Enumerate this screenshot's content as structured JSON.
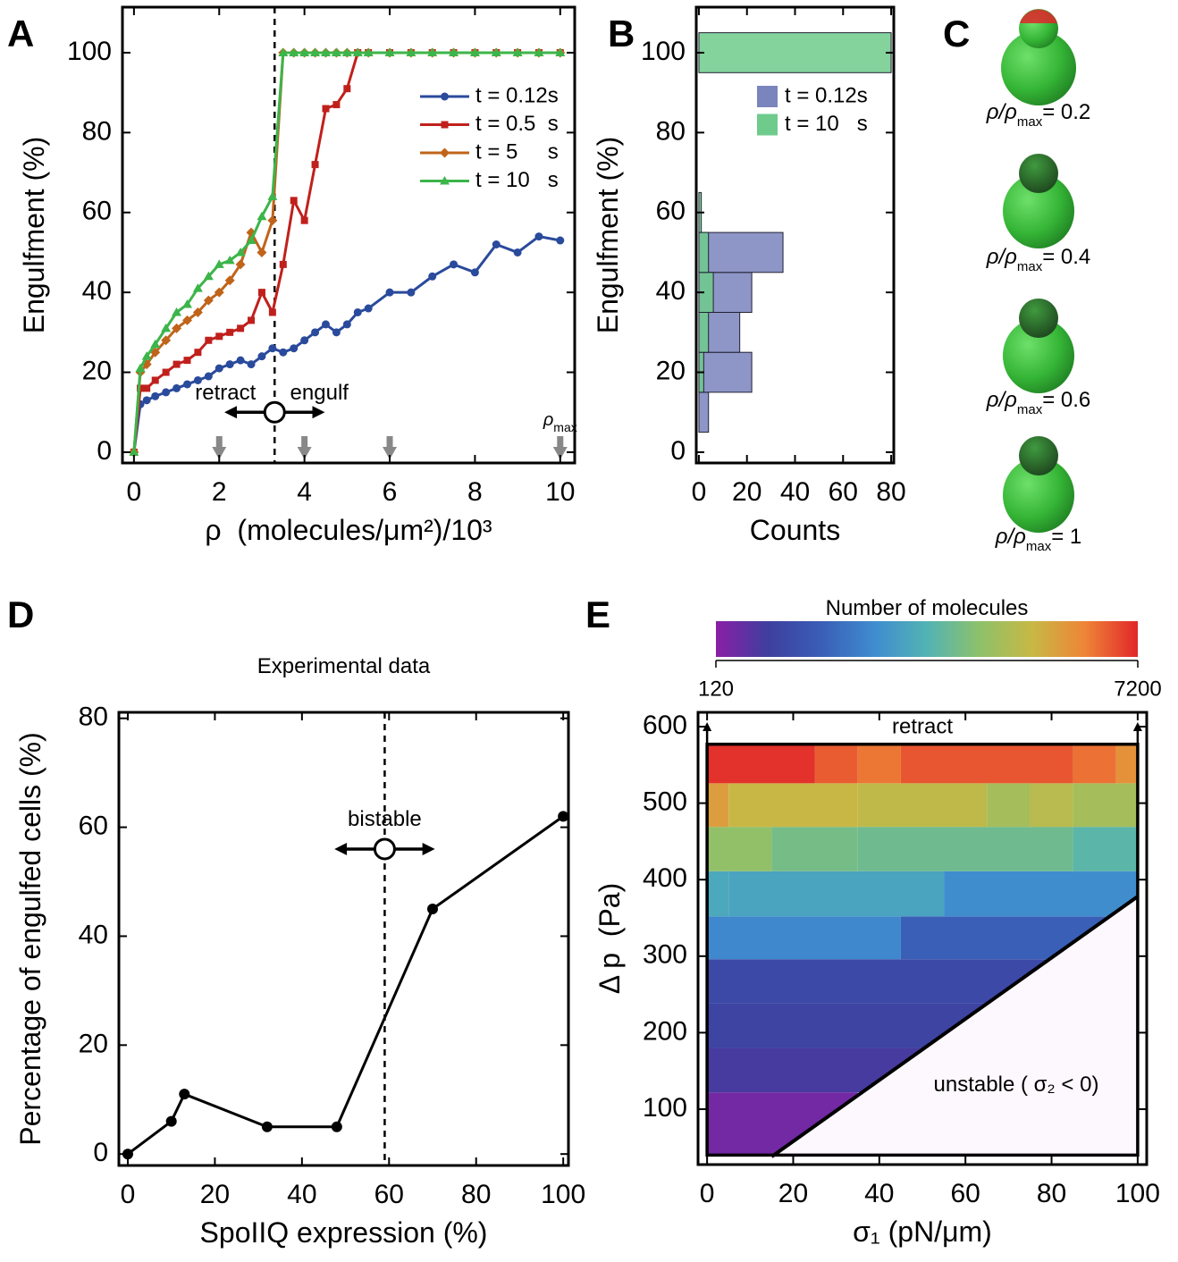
{
  "chart_data": [
    {
      "type": "line",
      "panel_label": "A",
      "x": [
        0,
        0.15,
        0.3,
        0.5,
        0.75,
        1,
        1.25,
        1.5,
        1.75,
        2,
        2.25,
        2.5,
        2.75,
        3,
        3.25,
        3.5,
        3.75,
        4,
        4.25,
        4.5,
        4.75,
        5,
        5.25,
        5.5,
        6,
        6.5,
        7,
        7.5,
        8,
        8.5,
        9,
        9.5,
        10
      ],
      "series": [
        {
          "name": "t = 0.12s",
          "color": "#2a4a9c",
          "marker": "circle",
          "values": [
            0,
            12,
            13,
            14,
            15,
            16,
            17,
            18,
            19,
            21,
            22,
            23,
            22,
            24,
            26,
            25,
            26,
            28,
            30,
            32,
            30,
            32,
            35,
            36,
            40,
            40,
            44,
            47,
            45,
            52,
            50,
            54,
            53
          ]
        },
        {
          "name": "t = 0.5  s",
          "color": "#c0201c",
          "marker": "square",
          "values": [
            0,
            16,
            16,
            18,
            20,
            22,
            23,
            25,
            28,
            29,
            30,
            31,
            33,
            40,
            35,
            47,
            63,
            58,
            72,
            86,
            87,
            91,
            100,
            100,
            100,
            100,
            100,
            100,
            100,
            100,
            100,
            100,
            100
          ]
        },
        {
          "name": "t = 5     s",
          "color": "#c0641a",
          "marker": "diamond",
          "values": [
            0,
            20,
            22,
            25,
            28,
            31,
            33,
            35,
            38,
            40,
            43,
            47,
            55,
            50,
            58,
            100,
            100,
            100,
            100,
            100,
            100,
            100,
            100,
            100,
            100,
            100,
            100,
            100,
            100,
            100,
            100,
            100,
            100
          ]
        },
        {
          "name": "t = 10   s",
          "color": "#3cb54a",
          "marker": "triangle",
          "values": [
            0,
            21,
            24,
            27,
            31,
            35,
            37,
            41,
            44,
            47,
            48,
            50,
            53,
            59,
            64,
            100,
            100,
            100,
            100,
            100,
            100,
            100,
            100,
            100,
            100,
            100,
            100,
            100,
            100,
            100,
            100,
            100,
            100
          ]
        }
      ],
      "xlim": [
        -0.27,
        10.34
      ],
      "ylim": [
        -2.7,
        111.4
      ],
      "xticks": [
        0,
        2,
        4,
        6,
        8,
        10
      ],
      "yticks": [
        0,
        20,
        40,
        60,
        80,
        100
      ],
      "xlabel": "ρ  (molecules/μm²)/10³",
      "ylabel": "Engulfment (%)",
      "legend": "upper right",
      "threshold_x": 3.3,
      "switch_y": 10,
      "annotations": [
        "retract",
        "engulf"
      ],
      "arrows_x": [
        2,
        4,
        6,
        10
      ],
      "rho_max": {
        "symbol": "ρ",
        "sub": "max"
      }
    },
    {
      "type": "histogram",
      "orientation": "horizontal",
      "panel_label": "B",
      "series": [
        {
          "name": "t = 0.12s",
          "color": "#7a84bd",
          "bins": [
            5,
            15,
            25,
            35,
            45,
            55
          ],
          "counts": [
            4,
            22,
            17,
            22,
            35
          ]
        },
        {
          "name": "t = 10   s",
          "color": "#6fcb8c",
          "bins": [
            15,
            25,
            35,
            45,
            55,
            65,
            75,
            85,
            95,
            105
          ],
          "counts": [
            2,
            4,
            6,
            4,
            1,
            0,
            0,
            0,
            80
          ]
        }
      ],
      "xlim": [
        -1.1,
        81.1
      ],
      "ylim": [
        -2.7,
        111.4
      ],
      "xticks": [
        0,
        20,
        40,
        60,
        80
      ],
      "yticks": [
        0,
        20,
        40,
        60,
        80,
        100
      ],
      "xlabel": "Counts",
      "ylabel": "Engulfment (%)",
      "legend": "upper right"
    },
    {
      "type": "line",
      "panel_label": "D",
      "title": "Experimental data",
      "x": [
        0,
        10,
        13,
        32,
        48,
        70,
        100
      ],
      "series": [
        {
          "color": "#000000",
          "marker": "circle",
          "values": [
            0,
            6,
            11,
            5,
            5,
            45,
            62
          ]
        }
      ],
      "xlim": [
        -2.05,
        101.2
      ],
      "ylim": [
        -2.1,
        81.1
      ],
      "xticks": [
        0,
        20,
        40,
        60,
        80,
        100
      ],
      "yticks": [
        0,
        20,
        40,
        60,
        80
      ],
      "xlabel": "SpoIIQ expression (%)",
      "ylabel": "Percentage of engulfed cells (%)",
      "threshold_x": 59,
      "switch_y": 56,
      "annotations": [
        "bistable"
      ]
    },
    {
      "type": "heatmap",
      "panel_label": "E",
      "xlim": [
        -2.1,
        102.1
      ],
      "ylim": [
        27.6,
        618.7
      ],
      "xticks": [
        0,
        20,
        40,
        60,
        80,
        100
      ],
      "yticks": [
        100,
        200,
        300,
        400,
        500,
        600
      ],
      "xlabel": "σ₁ (pN/μm)",
      "ylabel": "Δ p  (Pa)",
      "row_edges": [
        40,
        122,
        180,
        238,
        296,
        352,
        411,
        469,
        526,
        577
      ],
      "rows": [
        [
          [
            0,
            35,
            400
          ]
        ],
        [
          [
            0,
            100,
            900
          ]
        ],
        [
          [
            0,
            100,
            1150
          ]
        ],
        [
          [
            0,
            100,
            1300
          ]
        ],
        [
          [
            0,
            45,
            2700
          ],
          [
            45,
            100,
            1900
          ]
        ],
        [
          [
            0,
            5,
            3400
          ],
          [
            5,
            55,
            3300
          ],
          [
            55,
            100,
            2800
          ]
        ],
        [
          [
            0,
            15,
            4600
          ],
          [
            15,
            35,
            4200
          ],
          [
            35,
            85,
            4100
          ],
          [
            85,
            100,
            3800
          ]
        ],
        [
          [
            0,
            5,
            5900
          ],
          [
            5,
            35,
            5450
          ],
          [
            35,
            65,
            5300
          ],
          [
            65,
            75,
            4900
          ],
          [
            75,
            85,
            5200
          ],
          [
            85,
            100,
            4900
          ]
        ],
        [
          [
            0,
            25,
            7100
          ],
          [
            25,
            35,
            6700
          ],
          [
            35,
            45,
            6450
          ],
          [
            45,
            85,
            6750
          ],
          [
            85,
            95,
            6500
          ],
          [
            95,
            100,
            6100
          ]
        ]
      ],
      "colormap": [
        "#8a1fa6",
        "#3e3f9e",
        "#3a5eb6",
        "#3f8ccf",
        "#52b3b4",
        "#8dc16a",
        "#c8b845",
        "#ee8537",
        "#e2262a"
      ],
      "clim": [
        120,
        7200
      ],
      "cticks": [
        120,
        7200
      ],
      "clabel": "Number of molecules",
      "unstable_line": {
        "x": [
          15,
          100
        ],
        "y": [
          38,
          378
        ]
      },
      "annotations": [
        "retract",
        "unstable ( σ₂ < 0)"
      ]
    }
  ],
  "panel_c": {
    "panel_label": "C",
    "labels": [
      {
        "symbol": "ρ/ρ",
        "sub": "max",
        "value": "= 0.2"
      },
      {
        "symbol": "ρ/ρ",
        "sub": "max",
        "value": "= 0.4"
      },
      {
        "symbol": "ρ/ρ",
        "sub": "max",
        "value": "= 0.6"
      },
      {
        "symbol": "ρ/ρ",
        "sub": "max",
        "value": "= 1"
      }
    ]
  }
}
